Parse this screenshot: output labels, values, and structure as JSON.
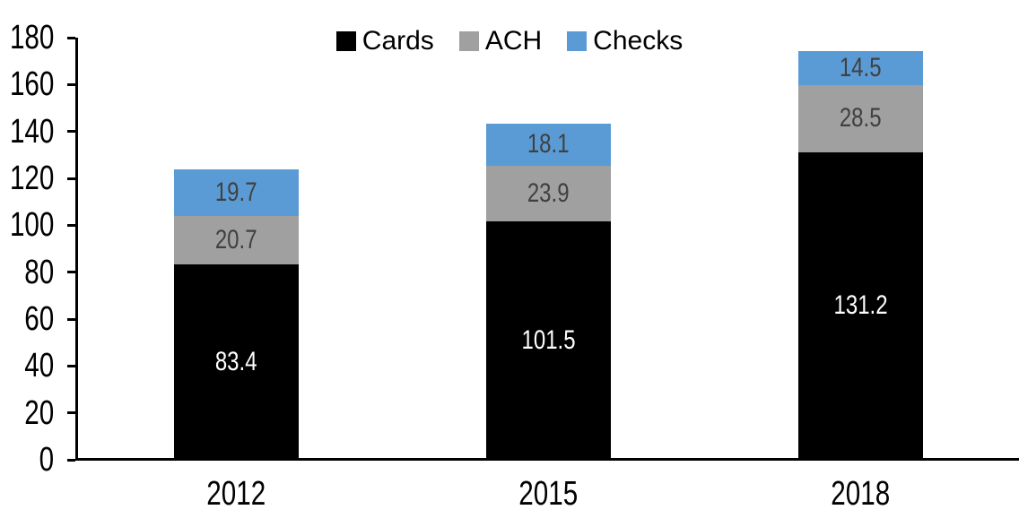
{
  "chart_data": {
    "type": "bar",
    "stacked": true,
    "title": "",
    "xlabel": "",
    "ylabel": "",
    "grid": false,
    "legend_position": "top",
    "categories": [
      "2012",
      "2015",
      "2018"
    ],
    "series": [
      {
        "name": "Cards",
        "color": "#000000",
        "label_color": "#FFFFFF",
        "values": [
          83.4,
          101.5,
          131.2
        ]
      },
      {
        "name": "ACH",
        "color": "#A0A0A0",
        "label_color": "#404040",
        "values": [
          20.7,
          23.9,
          28.5
        ]
      },
      {
        "name": "Checks",
        "color": "#5B9BD5",
        "label_color": "#404040",
        "values": [
          19.7,
          18.1,
          14.5
        ]
      }
    ],
    "totals": [
      123.8,
      143.5,
      174.2
    ],
    "ylim": [
      0,
      180
    ],
    "ytick_step": 20,
    "yticks": [
      0,
      20,
      40,
      60,
      80,
      100,
      120,
      140,
      160,
      180
    ],
    "axis_color": "#000000",
    "background_color": "#FFFFFF"
  }
}
